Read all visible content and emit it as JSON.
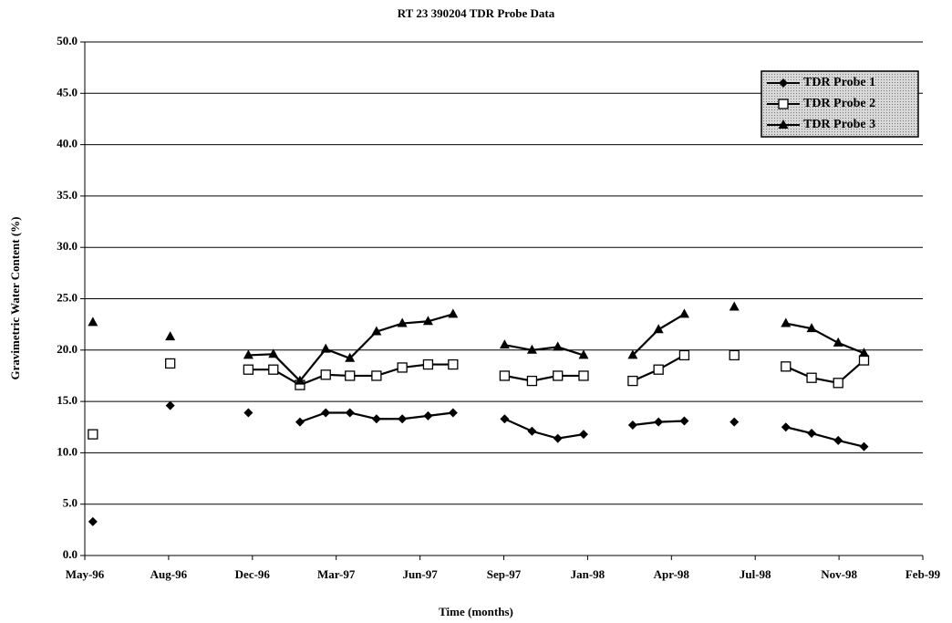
{
  "chart_data": {
    "type": "line",
    "title": "RT 23 390204  TDR Probe Data",
    "x_label": "Time (months)",
    "y_label": "Gravimetric Water Content (%)",
    "x": [
      35210,
      null,
      35306,
      null,
      35403,
      35434,
      35467,
      35499,
      35529,
      35562,
      35594,
      35626,
      35657,
      null,
      35721,
      35755,
      35787,
      35819,
      null,
      35880,
      35912,
      35944,
      null,
      36006,
      null,
      36070,
      36102,
      36135,
      36167
    ],
    "series": [
      {
        "name": "TDR Probe 1",
        "color": "#000000",
        "marker": "diamond",
        "values": [
          3.3,
          null,
          14.6,
          null,
          13.9,
          null,
          13.0,
          13.9,
          13.9,
          13.3,
          13.3,
          13.6,
          13.9,
          null,
          13.3,
          12.1,
          11.4,
          11.8,
          null,
          12.7,
          13.0,
          13.1,
          null,
          13.0,
          null,
          12.5,
          11.9,
          11.2,
          10.6
        ]
      },
      {
        "name": "TDR Probe 2",
        "color": "#000000",
        "marker": "square",
        "values": [
          11.8,
          null,
          18.7,
          null,
          18.1,
          18.1,
          16.6,
          17.6,
          17.5,
          17.5,
          18.3,
          18.6,
          18.6,
          null,
          17.5,
          17.0,
          17.5,
          17.5,
          null,
          17.0,
          18.1,
          19.5,
          null,
          19.5,
          null,
          18.4,
          17.3,
          16.8,
          19.0
        ]
      },
      {
        "name": "TDR Probe 3",
        "color": "#000000",
        "marker": "triangle",
        "values": [
          22.7,
          null,
          21.3,
          null,
          19.5,
          19.6,
          17.0,
          20.1,
          19.2,
          21.8,
          22.6,
          22.8,
          23.5,
          null,
          20.5,
          20.0,
          20.3,
          19.5,
          null,
          19.5,
          22.0,
          23.5,
          null,
          24.2,
          null,
          22.6,
          22.1,
          20.7,
          19.7
        ]
      }
    ],
    "xlim": [
      35200,
      36240
    ],
    "xticks": [
      {
        "value": 35200,
        "label": "May-96"
      },
      {
        "value": 35304,
        "label": "Aug-96"
      },
      {
        "value": 35408,
        "label": "Dec-96"
      },
      {
        "value": 35512,
        "label": "Mar-97"
      },
      {
        "value": 35616,
        "label": "Jun-97"
      },
      {
        "value": 35720,
        "label": "Sep-97"
      },
      {
        "value": 35824,
        "label": "Jan-98"
      },
      {
        "value": 35928,
        "label": "Apr-98"
      },
      {
        "value": 36032,
        "label": "Jul-98"
      },
      {
        "value": 36136,
        "label": "Nov-98"
      },
      {
        "value": 36240,
        "label": "Feb-99"
      }
    ],
    "ylim": [
      0,
      50
    ],
    "yticks": [
      {
        "value": 0,
        "label": "0.0"
      },
      {
        "value": 5,
        "label": "5.0"
      },
      {
        "value": 10,
        "label": "10.0"
      },
      {
        "value": 15,
        "label": "15.0"
      },
      {
        "value": 20,
        "label": "20.0"
      },
      {
        "value": 25,
        "label": "25.0"
      },
      {
        "value": 30,
        "label": "30.0"
      },
      {
        "value": 35,
        "label": "35.0"
      },
      {
        "value": 40,
        "label": "40.0"
      },
      {
        "value": 45,
        "label": "45.0"
      },
      {
        "value": 50,
        "label": "50.0"
      }
    ],
    "grid": true,
    "legend": "upper right"
  }
}
